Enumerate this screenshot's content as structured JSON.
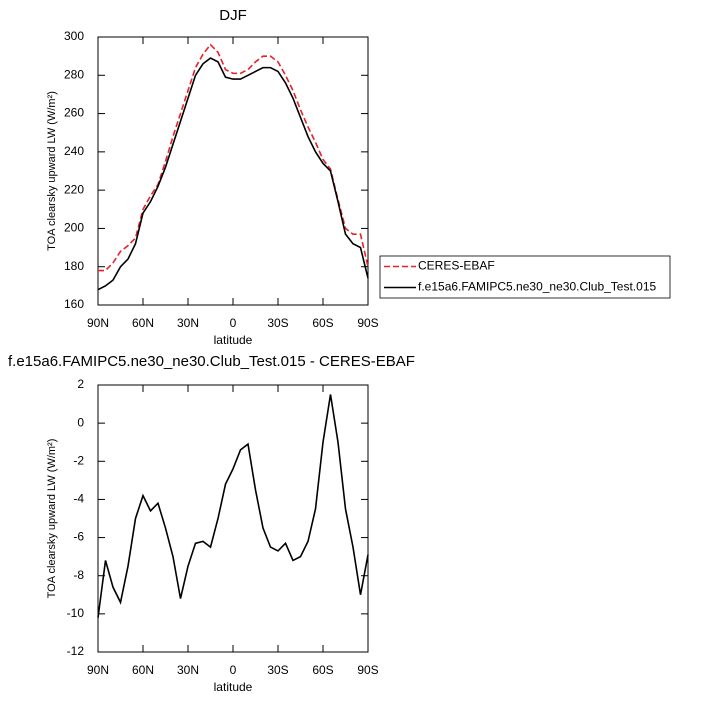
{
  "chart_data": [
    {
      "type": "line",
      "title": "DJF",
      "xlabel": "latitude",
      "ylabel": "TOA clearsky upward LW (W/m²)",
      "x": [
        90,
        85,
        80,
        75,
        70,
        65,
        60,
        55,
        50,
        45,
        40,
        35,
        30,
        25,
        20,
        15,
        10,
        5,
        0,
        -5,
        -10,
        -15,
        -20,
        -25,
        -30,
        -35,
        -40,
        -45,
        -50,
        -55,
        -60,
        -65,
        -70,
        -75,
        -80,
        -85,
        -90
      ],
      "series": [
        {
          "name": "CERES-EBAF",
          "color": "#e8202a",
          "style": "dashed",
          "values": [
            178,
            178,
            182,
            188,
            191,
            195,
            210,
            217,
            223,
            235,
            248,
            260,
            272,
            284,
            291,
            296,
            292,
            283,
            281,
            281,
            283,
            287,
            290,
            290,
            287,
            280,
            272,
            262,
            253,
            245,
            236,
            231,
            215,
            200,
            197,
            197,
            180
          ]
        },
        {
          "name": "f.e15a6.FAMIPC5.ne30_ne30.Club_Test.015",
          "color": "#000000",
          "style": "solid",
          "values": [
            168,
            170,
            173,
            180,
            184,
            192,
            208,
            214,
            222,
            232,
            244,
            256,
            268,
            280,
            286,
            289,
            287,
            279,
            278,
            278,
            280,
            282,
            284,
            284,
            282,
            276,
            268,
            258,
            248,
            240,
            234,
            230,
            214,
            197,
            192,
            190,
            174
          ]
        }
      ],
      "xlim": [
        90,
        -90
      ],
      "xticks": [
        {
          "value": 90,
          "label": "90N"
        },
        {
          "value": 60,
          "label": "60N"
        },
        {
          "value": 30,
          "label": "30N"
        },
        0,
        {
          "value": -30,
          "label": "30S"
        },
        {
          "value": -60,
          "label": "60S"
        },
        {
          "value": -90,
          "label": "90S"
        }
      ],
      "ylim": [
        160,
        300
      ],
      "yticks": [
        160,
        180,
        200,
        220,
        240,
        260,
        280,
        300
      ],
      "legend": "right"
    },
    {
      "type": "line",
      "title": "f.e15a6.FAMIPC5.ne30_ne30.Club_Test.015 - CERES-EBAF",
      "xlabel": "latitude",
      "ylabel": "TOA clearsky upward LW (W/m²)",
      "x": [
        90,
        85,
        80,
        75,
        70,
        65,
        60,
        55,
        50,
        45,
        40,
        35,
        30,
        25,
        20,
        15,
        10,
        5,
        0,
        -5,
        -10,
        -15,
        -20,
        -25,
        -30,
        -35,
        -40,
        -45,
        -50,
        -55,
        -60,
        -65,
        -70,
        -75,
        -80,
        -85,
        -90
      ],
      "series": [
        {
          "color": "#000000",
          "style": "solid",
          "values": [
            -10.2,
            -7.2,
            -8.6,
            -9.4,
            -7.5,
            -5.0,
            -3.8,
            -4.6,
            -4.2,
            -5.5,
            -7.0,
            -9.2,
            -7.5,
            -6.3,
            -6.2,
            -6.5,
            -5.0,
            -3.2,
            -2.4,
            -1.4,
            -1.1,
            -3.5,
            -5.5,
            -6.5,
            -6.7,
            -6.3,
            -7.2,
            -7.0,
            -6.2,
            -4.5,
            -1.0,
            1.5,
            -1.0,
            -4.5,
            -6.5,
            -9.0,
            -6.9
          ]
        }
      ],
      "xlim": [
        90,
        -90
      ],
      "xticks": [
        {
          "value": 90,
          "label": "90N"
        },
        {
          "value": 60,
          "label": "60N"
        },
        {
          "value": 30,
          "label": "30N"
        },
        0,
        {
          "value": -30,
          "label": "30S"
        },
        {
          "value": -60,
          "label": "60S"
        },
        {
          "value": -90,
          "label": "90S"
        }
      ],
      "ylim": [
        -12,
        2
      ],
      "yticks": [
        -12,
        -10,
        -8,
        -6,
        -4,
        -2,
        0,
        2
      ]
    }
  ]
}
